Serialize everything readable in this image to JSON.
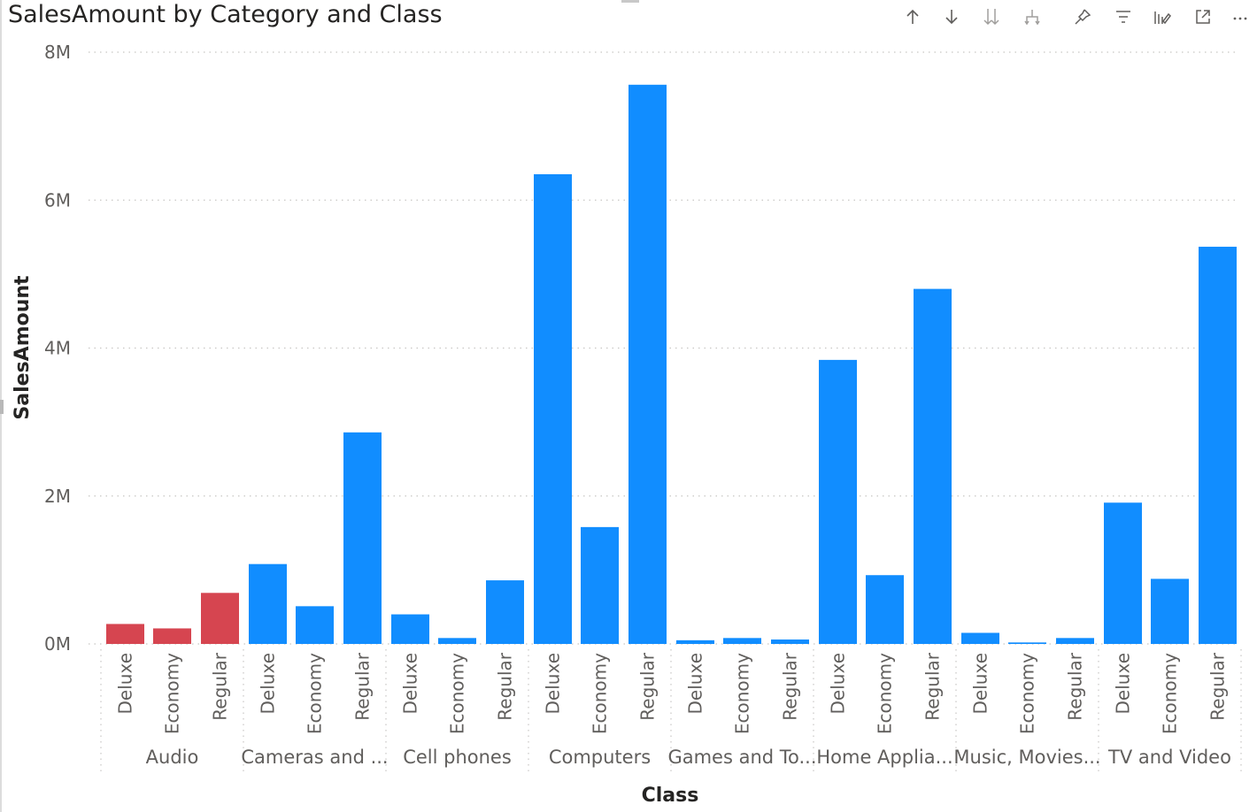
{
  "visual": {
    "title": "SalesAmount by Category and Class",
    "toolbar": [
      {
        "name": "drill-up-icon"
      },
      {
        "name": "drill-down-icon"
      },
      {
        "name": "expand-next-level-icon"
      },
      {
        "name": "expand-hierarchy-icon"
      },
      {
        "name": "pin-icon"
      },
      {
        "name": "filter-icon"
      },
      {
        "name": "format-visual-icon"
      },
      {
        "name": "focus-mode-icon"
      },
      {
        "name": "more-options-icon"
      }
    ]
  },
  "colors": {
    "highlight": "#D64550",
    "bar": "#118DFF",
    "grid": "#C8C6C4",
    "separator": "#C8C6C4"
  },
  "chart_data": {
    "type": "bar",
    "xlabel": "Class",
    "ylabel": "SalesAmount",
    "ylim": [
      0,
      8000000
    ],
    "yticks": [
      {
        "value": 0,
        "label": "0M"
      },
      {
        "value": 2000000,
        "label": "2M"
      },
      {
        "value": 4000000,
        "label": "4M"
      },
      {
        "value": 6000000,
        "label": "6M"
      },
      {
        "value": 8000000,
        "label": "8M"
      }
    ],
    "grid": true,
    "groups": [
      {
        "category": "Audio",
        "highlight": true,
        "classes": [
          "Deluxe",
          "Economy",
          "Regular"
        ],
        "values": [
          270000,
          210000,
          690000
        ]
      },
      {
        "category": "Cameras and ...",
        "highlight": false,
        "classes": [
          "Deluxe",
          "Economy",
          "Regular"
        ],
        "values": [
          1080000,
          510000,
          2860000
        ]
      },
      {
        "category": "Cell phones",
        "highlight": false,
        "classes": [
          "Deluxe",
          "Economy",
          "Regular"
        ],
        "values": [
          400000,
          80000,
          860000
        ]
      },
      {
        "category": "Computers",
        "highlight": false,
        "classes": [
          "Deluxe",
          "Economy",
          "Regular"
        ],
        "values": [
          6350000,
          1580000,
          7560000
        ]
      },
      {
        "category": "Games and To...",
        "highlight": false,
        "classes": [
          "Deluxe",
          "Economy",
          "Regular"
        ],
        "values": [
          50000,
          80000,
          60000
        ]
      },
      {
        "category": "Home Applia...",
        "highlight": false,
        "classes": [
          "Deluxe",
          "Economy",
          "Regular"
        ],
        "values": [
          3840000,
          930000,
          4800000
        ]
      },
      {
        "category": "Music, Movies...",
        "highlight": false,
        "classes": [
          "Deluxe",
          "Economy",
          "Regular"
        ],
        "values": [
          150000,
          20000,
          80000
        ]
      },
      {
        "category": "TV and Video",
        "highlight": false,
        "classes": [
          "Deluxe",
          "Economy",
          "Regular"
        ],
        "values": [
          1910000,
          880000,
          5370000
        ]
      }
    ]
  }
}
